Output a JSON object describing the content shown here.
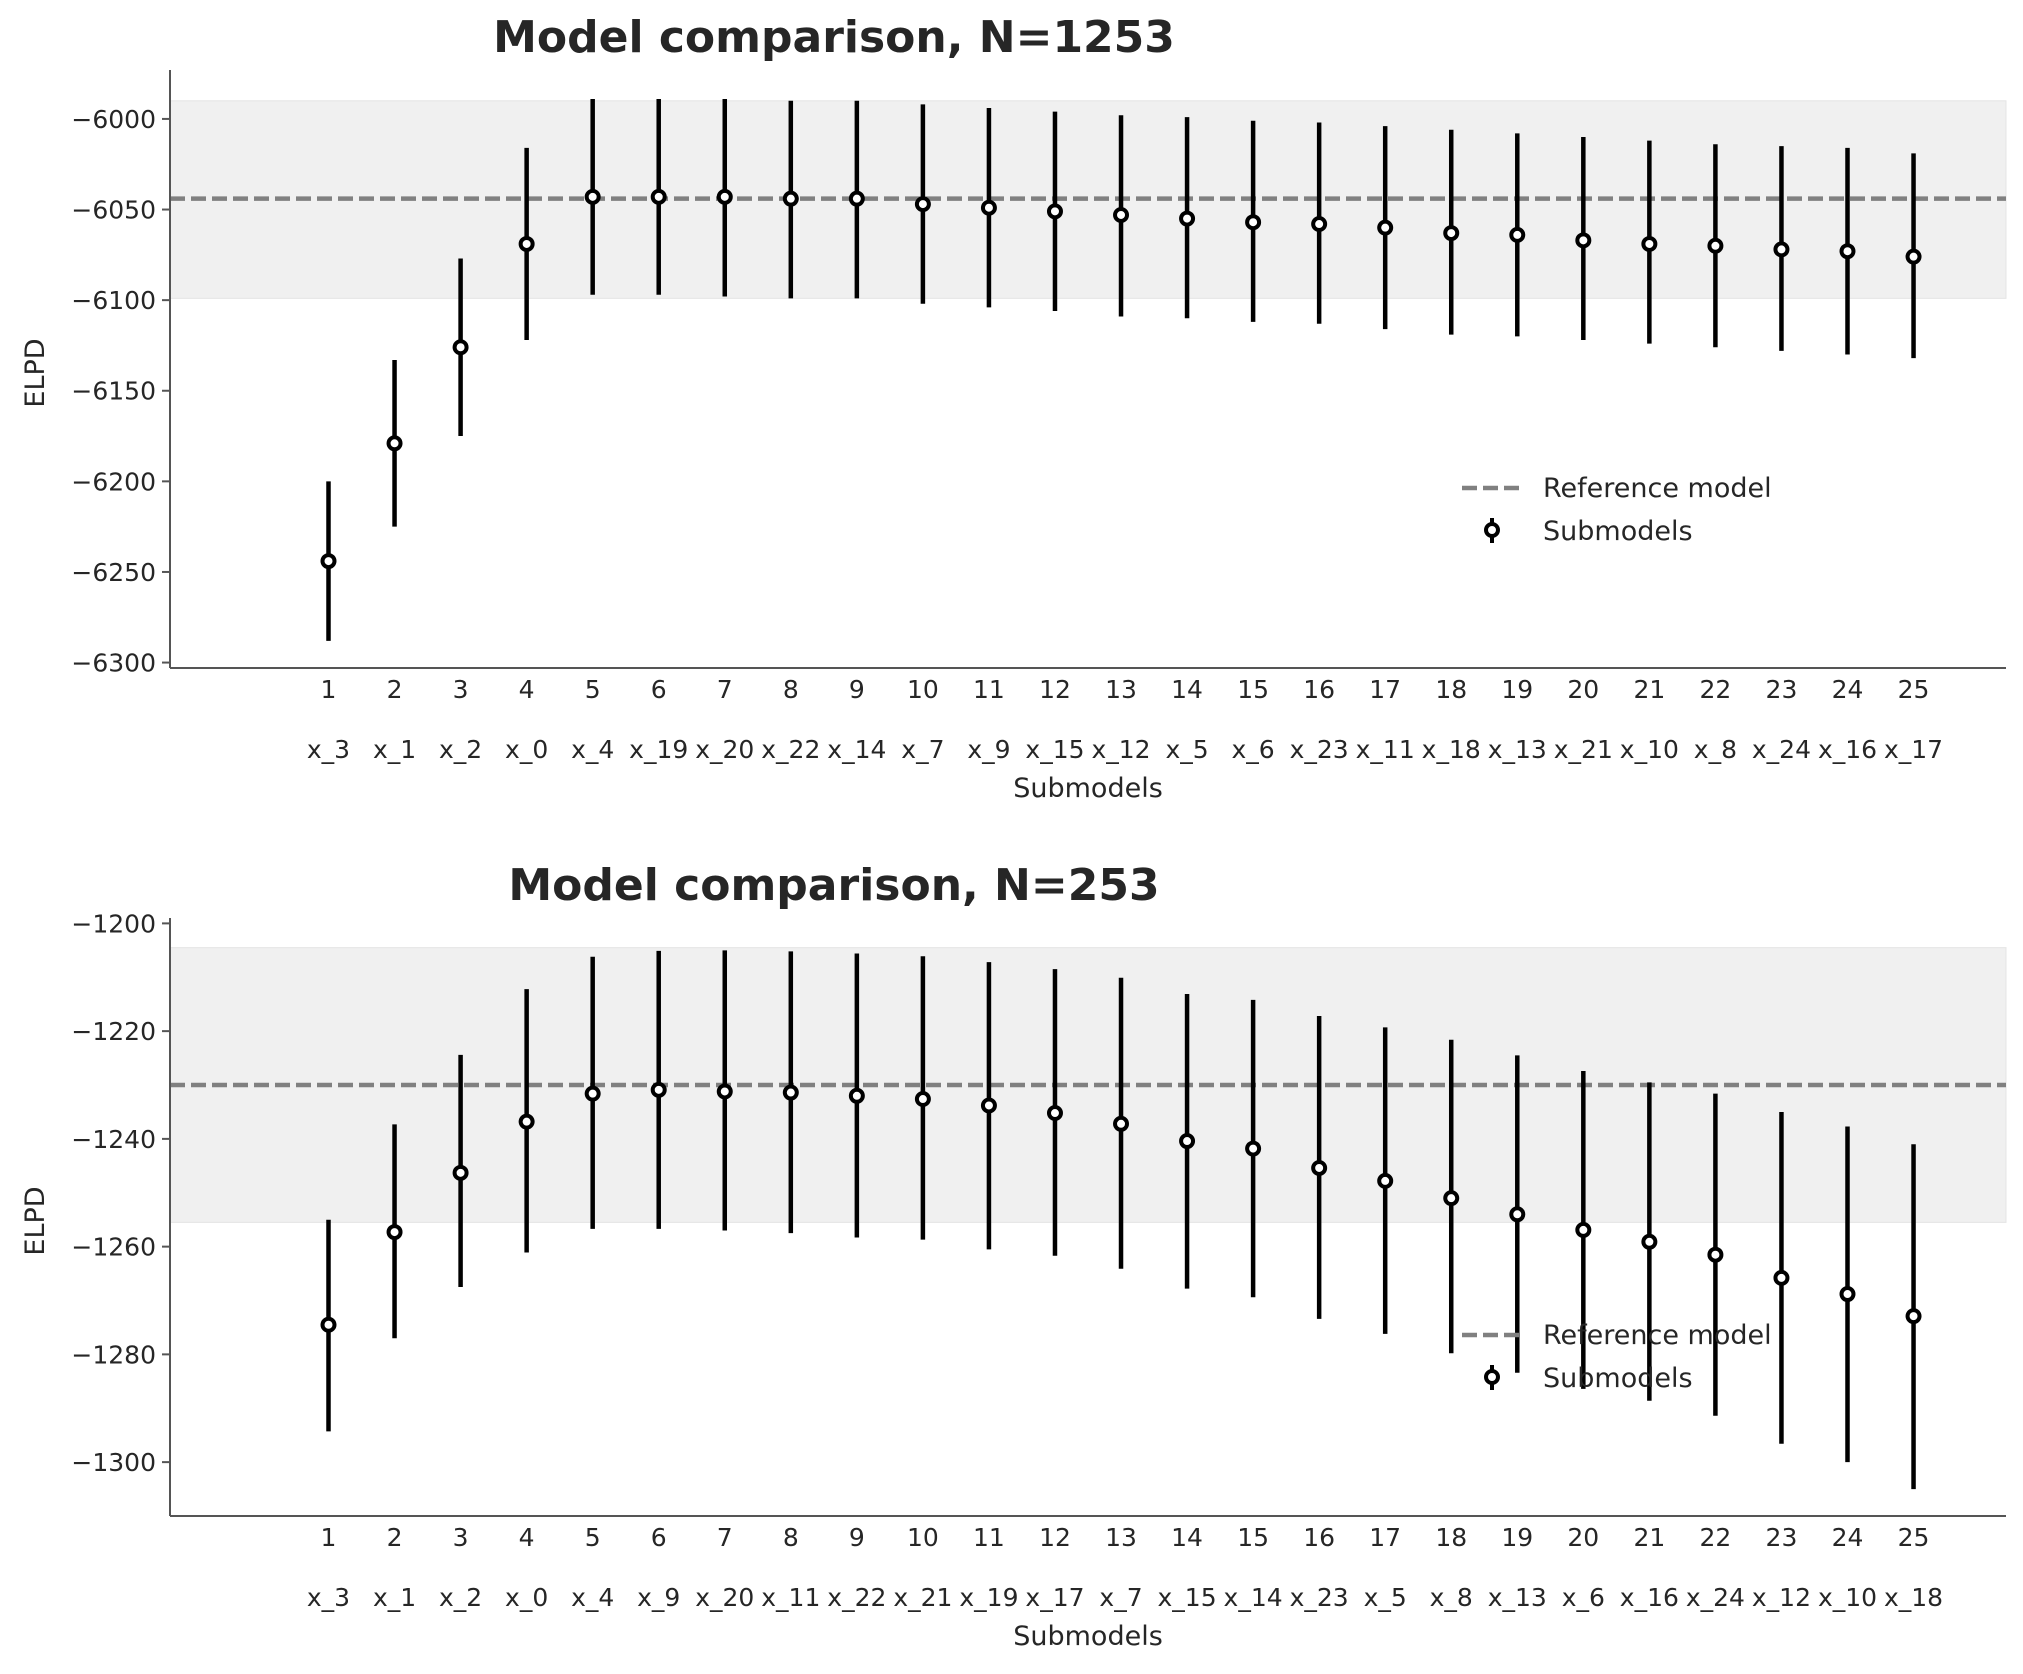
{
  "colors": {
    "background": "#ffffff",
    "band": "#f0f0f0",
    "reference_line": "#808080",
    "submodel": "#000000",
    "marker_fill": "#ffffff",
    "axis": "#555555",
    "text": "#262626"
  },
  "chart_data": [
    {
      "type": "errorbar",
      "title": "Model comparison, N=1253",
      "xlabel": "Submodels",
      "ylabel": "ELPD",
      "ylim": [
        -6303,
        -5973
      ],
      "yticks": [
        -6300,
        -6250,
        -6200,
        -6150,
        -6100,
        -6050,
        -6000
      ],
      "ytick_labels": [
        "−6300",
        "−6250",
        "−6200",
        "−6150",
        "−6100",
        "−6050",
        "−6000"
      ],
      "xlim": [
        -1.4,
        26.4
      ],
      "categories": [
        "1",
        "2",
        "3",
        "4",
        "5",
        "6",
        "7",
        "8",
        "9",
        "10",
        "11",
        "12",
        "13",
        "14",
        "15",
        "16",
        "17",
        "18",
        "19",
        "20",
        "21",
        "22",
        "23",
        "24",
        "25"
      ],
      "variables": [
        "x_3",
        "x_1",
        "x_2",
        "x_0",
        "x_4",
        "x_19",
        "x_20",
        "x_22",
        "x_14",
        "x_7",
        "x_9",
        "x_15",
        "x_12",
        "x_5",
        "x_6",
        "x_23",
        "x_11",
        "x_18",
        "x_13",
        "x_21",
        "x_10",
        "x_8",
        "x_24",
        "x_16",
        "x_17"
      ],
      "reference": {
        "name": "Reference model",
        "value": -6044,
        "band": [
          -6099,
          -5990
        ]
      },
      "series": [
        {
          "name": "Submodels",
          "values": [
            -6244,
            -6179,
            -6126,
            -6069,
            -6043,
            -6043,
            -6043,
            -6044,
            -6044,
            -6047,
            -6049,
            -6051,
            -6053,
            -6055,
            -6057,
            -6058,
            -6060,
            -6063,
            -6064,
            -6067,
            -6069,
            -6070,
            -6072,
            -6073,
            -6076
          ],
          "lower": [
            -6288,
            -6225,
            -6175,
            -6122,
            -6097,
            -6097,
            -6098,
            -6099,
            -6099,
            -6102,
            -6104,
            -6106,
            -6109,
            -6110,
            -6112,
            -6113,
            -6116,
            -6119,
            -6120,
            -6122,
            -6124,
            -6126,
            -6128,
            -6130,
            -6132
          ],
          "upper": [
            -6200,
            -6133,
            -6077,
            -6016,
            -5989,
            -5989,
            -5989,
            -5990,
            -5990,
            -5992,
            -5994,
            -5996,
            -5998,
            -5999,
            -6001,
            -6002,
            -6004,
            -6006,
            -6008,
            -6010,
            -6012,
            -6014,
            -6015,
            -6016,
            -6019
          ]
        }
      ],
      "legend": {
        "position": "center-right",
        "entries": [
          "Reference model",
          "Submodels"
        ]
      }
    },
    {
      "type": "errorbar",
      "title": "Model comparison, N=253",
      "xlabel": "Submodels",
      "ylabel": "ELPD",
      "ylim": [
        -1310,
        -1199
      ],
      "yticks": [
        -1300,
        -1280,
        -1260,
        -1240,
        -1220,
        -1200
      ],
      "ytick_labels": [
        "−1300",
        "−1280",
        "−1260",
        "−1240",
        "−1220",
        "−1200"
      ],
      "xlim": [
        -1.4,
        26.4
      ],
      "categories": [
        "1",
        "2",
        "3",
        "4",
        "5",
        "6",
        "7",
        "8",
        "9",
        "10",
        "11",
        "12",
        "13",
        "14",
        "15",
        "16",
        "17",
        "18",
        "19",
        "20",
        "21",
        "22",
        "23",
        "24",
        "25"
      ],
      "variables": [
        "x_3",
        "x_1",
        "x_2",
        "x_0",
        "x_4",
        "x_9",
        "x_20",
        "x_11",
        "x_22",
        "x_21",
        "x_19",
        "x_17",
        "x_7",
        "x_15",
        "x_14",
        "x_23",
        "x_5",
        "x_8",
        "x_13",
        "x_6",
        "x_16",
        "x_24",
        "x_12",
        "x_10",
        "x_18"
      ],
      "reference": {
        "name": "Reference model",
        "value": -1230,
        "band": [
          -1255.5,
          -1204.5
        ]
      },
      "series": [
        {
          "name": "Submodels",
          "values": [
            -1274.5,
            -1257.3,
            -1246.3,
            -1236.8,
            -1231.6,
            -1230.9,
            -1231.2,
            -1231.4,
            -1232.0,
            -1232.6,
            -1233.8,
            -1235.2,
            -1237.2,
            -1240.4,
            -1241.8,
            -1245.4,
            -1247.8,
            -1251.0,
            -1254.0,
            -1256.9,
            -1259.1,
            -1261.5,
            -1265.8,
            -1268.8,
            -1272.9
          ],
          "lower": [
            -1294.3,
            -1277.0,
            -1267.5,
            -1261.1,
            -1256.7,
            -1256.7,
            -1257.0,
            -1257.5,
            -1258.3,
            -1258.7,
            -1260.5,
            -1261.7,
            -1264.1,
            -1267.8,
            -1269.4,
            -1273.4,
            -1276.2,
            -1279.8,
            -1283.4,
            -1286.4,
            -1288.6,
            -1291.4,
            -1296.6,
            -1300.0,
            -1305.0
          ],
          "upper": [
            -1255.0,
            -1237.3,
            -1224.4,
            -1212.2,
            -1206.2,
            -1205.1,
            -1205.0,
            -1205.2,
            -1205.6,
            -1206.1,
            -1207.2,
            -1208.5,
            -1210.1,
            -1213.1,
            -1214.2,
            -1217.2,
            -1219.3,
            -1221.6,
            -1224.5,
            -1227.4,
            -1229.5,
            -1231.6,
            -1235.0,
            -1237.7,
            -1241.0
          ]
        }
      ],
      "legend": {
        "position": "lower-right",
        "entries": [
          "Reference model",
          "Submodels"
        ]
      }
    }
  ]
}
